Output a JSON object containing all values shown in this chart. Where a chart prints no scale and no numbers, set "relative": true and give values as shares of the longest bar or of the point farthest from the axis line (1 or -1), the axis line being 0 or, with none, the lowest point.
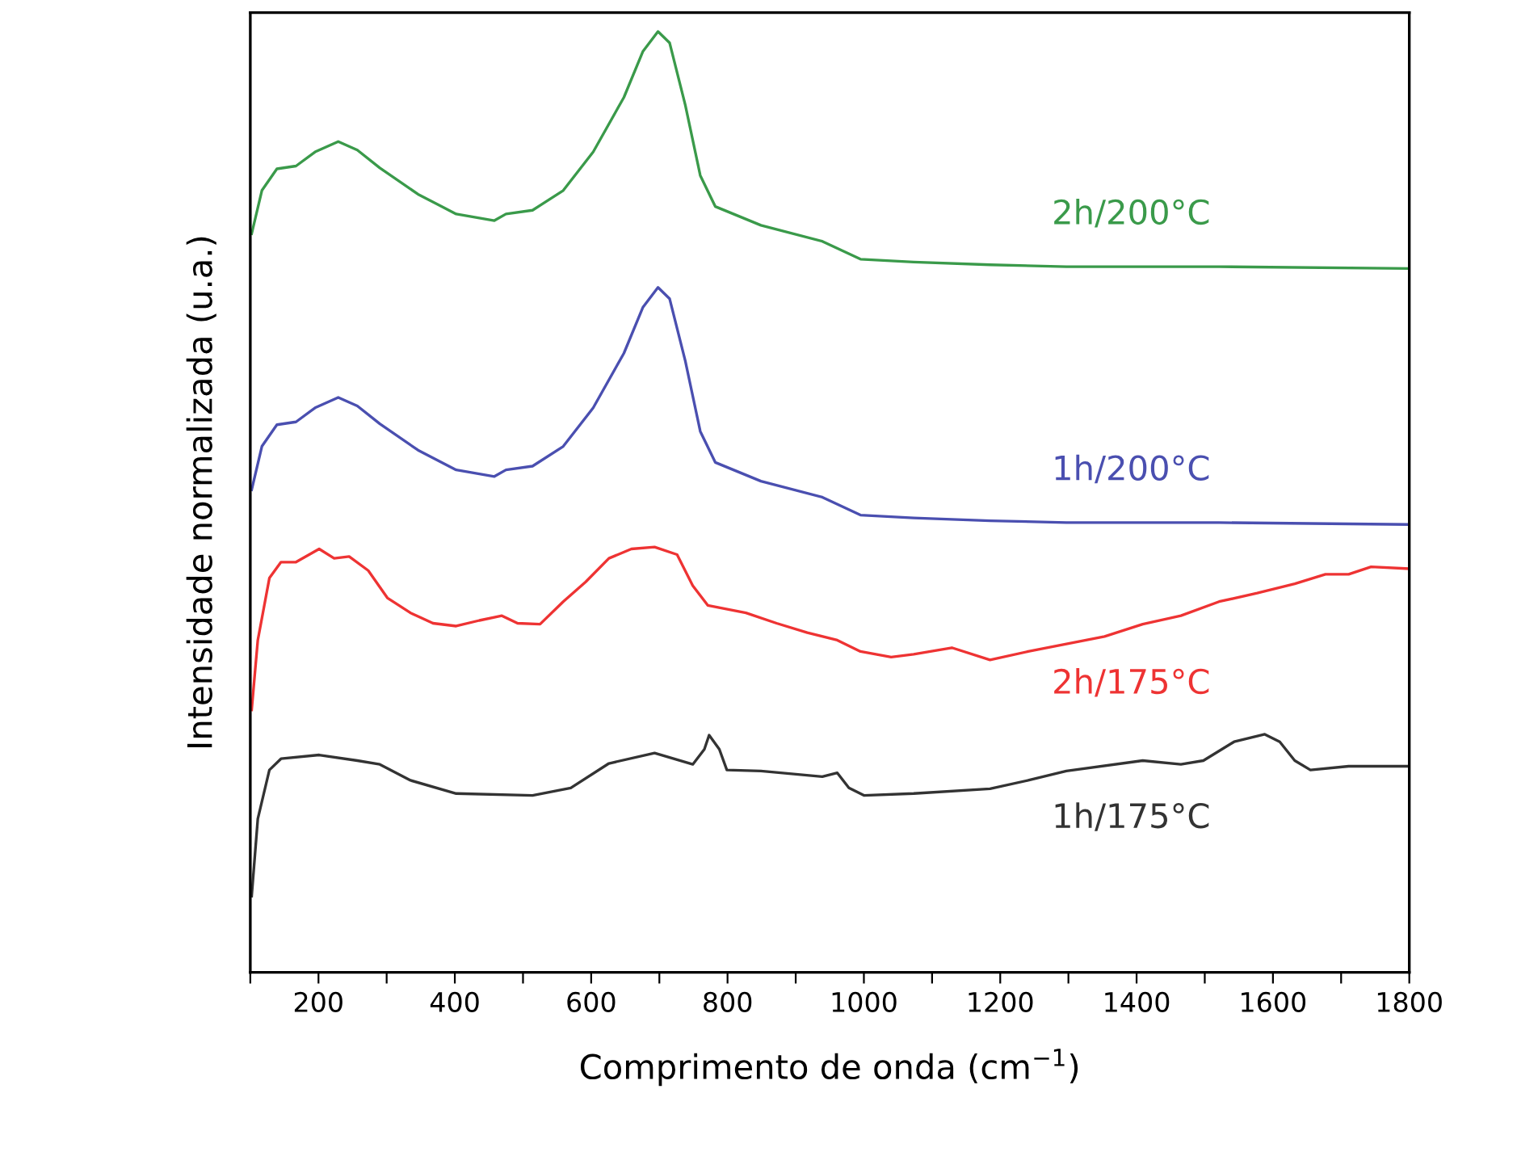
{
  "chart_data": {
    "type": "line",
    "relative": true,
    "xlabel": "Comprimento de onda (cm$^{−1}$)",
    "ylabel": "Intensidade normalizada (u.a.)",
    "xlim": [
      100,
      1800
    ],
    "xticks": [
      {
        "value": 100,
        "label": null
      },
      200,
      {
        "value": 300,
        "label": null
      },
      400,
      {
        "value": 500,
        "label": null
      },
      600,
      {
        "value": 700,
        "label": null
      },
      800,
      {
        "value": 900,
        "label": null
      },
      1000,
      {
        "value": 1100,
        "label": null
      },
      1200,
      {
        "value": 1300,
        "label": null
      },
      1400,
      {
        "value": 1500,
        "label": null
      },
      1600,
      {
        "value": 1700,
        "label": null
      },
      1800
    ],
    "tick_labels": "x",
    "grid": false,
    "legend": false,
    "marker": "none",
    "line_style": "solid",
    "series": [
      {
        "name": "2h/200°C",
        "color": "#3a9a4a",
        "x": [
          102,
          117,
          139,
          167,
          195,
          229,
          257,
          290,
          346,
          402,
          458,
          475,
          514,
          559,
          603,
          648,
          676,
          698,
          715,
          738,
          760,
          782,
          849,
          939,
          995,
          1073,
          1185,
          1297,
          1521,
          1800
        ],
        "values": [
          0.785,
          0.831,
          0.854,
          0.857,
          0.872,
          0.883,
          0.874,
          0.855,
          0.827,
          0.806,
          0.799,
          0.806,
          0.81,
          0.831,
          0.872,
          0.93,
          0.979,
          1.0,
          0.988,
          0.922,
          0.847,
          0.814,
          0.794,
          0.777,
          0.758,
          0.755,
          0.752,
          0.75,
          0.75,
          0.748
        ]
      },
      {
        "name": "1h/200°C",
        "color": "#4a4fb0",
        "x": [
          102,
          117,
          139,
          167,
          195,
          229,
          257,
          290,
          346,
          402,
          458,
          475,
          514,
          559,
          603,
          648,
          676,
          698,
          715,
          738,
          760,
          782,
          849,
          939,
          995,
          1073,
          1185,
          1297,
          1521,
          1800
        ],
        "values": [
          0.513,
          0.559,
          0.582,
          0.585,
          0.6,
          0.611,
          0.602,
          0.583,
          0.555,
          0.534,
          0.527,
          0.534,
          0.538,
          0.559,
          0.6,
          0.658,
          0.707,
          0.728,
          0.716,
          0.65,
          0.575,
          0.542,
          0.522,
          0.505,
          0.486,
          0.483,
          0.48,
          0.478,
          0.478,
          0.476
        ]
      },
      {
        "name": "2h/175°C",
        "color": "#ee3333",
        "x": [
          102,
          111,
          128,
          145,
          167,
          201,
          223,
          245,
          273,
          301,
          335,
          368,
          402,
          436,
          469,
          492,
          525,
          559,
          592,
          626,
          659,
          693,
          726,
          749,
          771,
          827,
          872,
          917,
          961,
          995,
          1040,
          1073,
          1129,
          1185,
          1241,
          1297,
          1353,
          1409,
          1465,
          1521,
          1577,
          1632,
          1677,
          1711,
          1744,
          1800
        ],
        "values": [
          0.279,
          0.353,
          0.419,
          0.436,
          0.436,
          0.45,
          0.44,
          0.442,
          0.427,
          0.398,
          0.382,
          0.371,
          0.368,
          0.374,
          0.379,
          0.371,
          0.37,
          0.394,
          0.415,
          0.44,
          0.45,
          0.452,
          0.444,
          0.411,
          0.39,
          0.382,
          0.371,
          0.361,
          0.353,
          0.341,
          0.335,
          0.338,
          0.345,
          0.332,
          0.341,
          0.349,
          0.357,
          0.37,
          0.379,
          0.394,
          0.403,
          0.413,
          0.423,
          0.423,
          0.431,
          0.429
        ]
      },
      {
        "name": "1h/175°C",
        "color": "#333333",
        "x": [
          102,
          111,
          128,
          145,
          201,
          257,
          290,
          335,
          402,
          514,
          570,
          626,
          693,
          749,
          766,
          773,
          788,
          799,
          849,
          939,
          961,
          978,
          1000,
          1073,
          1185,
          1241,
          1297,
          1409,
          1465,
          1498,
          1543,
          1588,
          1610,
          1632,
          1655,
          1711,
          1800
        ],
        "values": [
          0.081,
          0.163,
          0.215,
          0.227,
          0.231,
          0.225,
          0.221,
          0.204,
          0.19,
          0.188,
          0.196,
          0.222,
          0.233,
          0.221,
          0.237,
          0.252,
          0.237,
          0.215,
          0.214,
          0.208,
          0.212,
          0.196,
          0.188,
          0.19,
          0.195,
          0.204,
          0.214,
          0.225,
          0.221,
          0.225,
          0.245,
          0.253,
          0.245,
          0.225,
          0.215,
          0.219,
          0.219
        ]
      }
    ]
  }
}
